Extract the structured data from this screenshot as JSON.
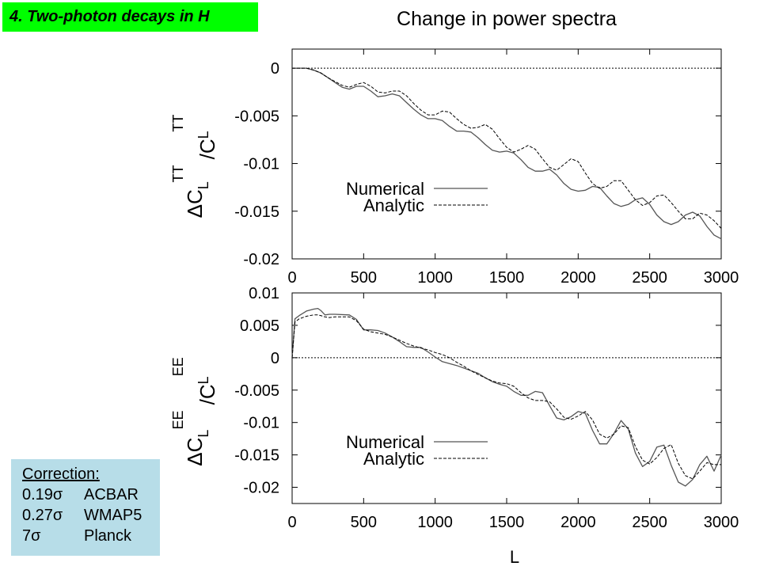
{
  "header": {
    "title": "4. Two-photon decays in H"
  },
  "figure_title": "Change in power spectra",
  "shared_xlabel": "L",
  "correction": {
    "heading": "Correction:",
    "rows": [
      {
        "factor": "0.19",
        "experiment": "ACBAR"
      },
      {
        "factor": "0.27",
        "experiment": "WMAP5"
      },
      {
        "factor": "7",
        "experiment": "Planck"
      }
    ],
    "symbol": "σ"
  },
  "colors": {
    "title_bg": "#00ff00",
    "correction_bg": "#b7dde8",
    "line": "#000000",
    "numerical_line": "#555555"
  },
  "chart_data": [
    {
      "type": "line",
      "title": "",
      "xlabel": "",
      "ylabel": "ΔC_L^TT / C_L^TT",
      "xlim": [
        0,
        3000
      ],
      "ylim": [
        -0.02,
        0.002
      ],
      "xticks": [
        "0",
        "500",
        "1000",
        "1500",
        "2000",
        "2500",
        "3000"
      ],
      "yticks": [
        "0",
        "-0.005",
        "-0.01",
        "-0.015",
        "-0.02"
      ],
      "ytick_values": [
        0,
        -0.005,
        -0.01,
        -0.015,
        -0.02
      ],
      "grid": false,
      "legend_placement": "center-right",
      "zero_line": true,
      "series": [
        {
          "name": "Numerical",
          "style": "solid",
          "x": [
            0,
            100,
            150,
            200,
            250,
            300,
            350,
            400,
            450,
            500,
            550,
            600,
            650,
            700,
            750,
            800,
            850,
            900,
            950,
            1000,
            1050,
            1100,
            1150,
            1200,
            1250,
            1300,
            1350,
            1400,
            1450,
            1500,
            1550,
            1600,
            1650,
            1700,
            1750,
            1800,
            1850,
            1900,
            1950,
            2000,
            2050,
            2100,
            2150,
            2200,
            2250,
            2300,
            2350,
            2400,
            2450,
            2500,
            2550,
            2600,
            2650,
            2700,
            2750,
            2800,
            2850,
            2900,
            2950,
            3000
          ],
          "y": [
            0,
            0,
            -0.0002,
            -0.0005,
            -0.001,
            -0.0015,
            -0.002,
            -0.0022,
            -0.0019,
            -0.0019,
            -0.0024,
            -0.003,
            -0.0029,
            -0.0027,
            -0.0029,
            -0.0036,
            -0.0043,
            -0.0049,
            -0.0053,
            -0.0053,
            -0.0055,
            -0.0061,
            -0.0066,
            -0.0066,
            -0.0067,
            -0.0073,
            -0.008,
            -0.0086,
            -0.0088,
            -0.0087,
            -0.0089,
            -0.0096,
            -0.0104,
            -0.0108,
            -0.0108,
            -0.0106,
            -0.0112,
            -0.0121,
            -0.0127,
            -0.0129,
            -0.0128,
            -0.0124,
            -0.0125,
            -0.0134,
            -0.0142,
            -0.0145,
            -0.0143,
            -0.0138,
            -0.0136,
            -0.0143,
            -0.0154,
            -0.0161,
            -0.0164,
            -0.0161,
            -0.0154,
            -0.0151,
            -0.0155,
            -0.0166,
            -0.0175,
            -0.0179
          ]
        },
        {
          "name": "Analytic",
          "style": "dashed",
          "x": [
            0,
            100,
            150,
            200,
            250,
            300,
            350,
            400,
            450,
            500,
            550,
            600,
            650,
            700,
            750,
            800,
            850,
            900,
            950,
            1000,
            1050,
            1100,
            1150,
            1200,
            1250,
            1300,
            1350,
            1400,
            1450,
            1500,
            1550,
            1600,
            1650,
            1700,
            1750,
            1800,
            1850,
            1900,
            1950,
            2000,
            2050,
            2100,
            2150,
            2200,
            2250,
            2300,
            2350,
            2400,
            2450,
            2500,
            2550,
            2600,
            2650,
            2700,
            2750,
            2800,
            2850,
            2900,
            2950,
            3000
          ],
          "y": [
            0,
            0,
            -0.0002,
            -0.0005,
            -0.001,
            -0.0014,
            -0.0018,
            -0.002,
            -0.0017,
            -0.0015,
            -0.0019,
            -0.0025,
            -0.0026,
            -0.0024,
            -0.0024,
            -0.0029,
            -0.0037,
            -0.0044,
            -0.0049,
            -0.0049,
            -0.0045,
            -0.0046,
            -0.0053,
            -0.0059,
            -0.0063,
            -0.0062,
            -0.0059,
            -0.0064,
            -0.0074,
            -0.0083,
            -0.0088,
            -0.0085,
            -0.0081,
            -0.0085,
            -0.0095,
            -0.0104,
            -0.0107,
            -0.0101,
            -0.0095,
            -0.0098,
            -0.011,
            -0.0121,
            -0.0126,
            -0.0124,
            -0.0118,
            -0.0118,
            -0.0128,
            -0.0138,
            -0.0144,
            -0.0141,
            -0.0134,
            -0.0133,
            -0.0141,
            -0.015,
            -0.0158,
            -0.0158,
            -0.0152,
            -0.0154,
            -0.016,
            -0.0168
          ]
        }
      ]
    },
    {
      "type": "line",
      "title": "",
      "xlabel": "",
      "ylabel": "ΔC_L^EE / C_L^EE",
      "xlim": [
        0,
        3000
      ],
      "ylim": [
        -0.0225,
        0.01
      ],
      "xticks": [
        "0",
        "500",
        "1000",
        "1500",
        "2000",
        "2500",
        "3000"
      ],
      "yticks": [
        "0.01",
        "0.005",
        "0",
        "-0.005",
        "-0.01",
        "-0.015",
        "-0.02"
      ],
      "ytick_values": [
        0.01,
        0.005,
        0,
        -0.005,
        -0.01,
        -0.015,
        -0.02
      ],
      "grid": false,
      "legend_placement": "bottom-center",
      "zero_line": true,
      "series": [
        {
          "name": "Numerical",
          "style": "solid",
          "x": [
            0,
            20,
            50,
            100,
            150,
            180,
            200,
            230,
            260,
            300,
            400,
            450,
            500,
            550,
            600,
            650,
            700,
            750,
            800,
            850,
            900,
            950,
            1000,
            1050,
            1100,
            1150,
            1200,
            1250,
            1300,
            1350,
            1400,
            1450,
            1500,
            1550,
            1600,
            1650,
            1700,
            1750,
            1800,
            1850,
            1900,
            1950,
            2000,
            2050,
            2100,
            2150,
            2200,
            2250,
            2300,
            2350,
            2400,
            2450,
            2500,
            2550,
            2600,
            2650,
            2700,
            2750,
            2800,
            2850,
            2900,
            2950,
            3000
          ],
          "y": [
            0,
            0.006,
            0.0065,
            0.0072,
            0.0075,
            0.0076,
            0.0073,
            0.0066,
            0.0067,
            0.0067,
            0.0066,
            0.0059,
            0.0043,
            0.0043,
            0.0042,
            0.0038,
            0.0032,
            0.0025,
            0.0017,
            0.0016,
            0.0016,
            0.0009,
            0.0001,
            -0.0006,
            -0.0009,
            -0.0012,
            -0.0016,
            -0.002,
            -0.0024,
            -0.0031,
            -0.0037,
            -0.0041,
            -0.0044,
            -0.0052,
            -0.0058,
            -0.0058,
            -0.0052,
            -0.0054,
            -0.0074,
            -0.0093,
            -0.0096,
            -0.0091,
            -0.0083,
            -0.0086,
            -0.0112,
            -0.0133,
            -0.0133,
            -0.0117,
            -0.0097,
            -0.011,
            -0.0147,
            -0.0168,
            -0.016,
            -0.0138,
            -0.0135,
            -0.0166,
            -0.0192,
            -0.0198,
            -0.0188,
            -0.0165,
            -0.0152,
            -0.0175,
            -0.015
          ]
        },
        {
          "name": "Analytic",
          "style": "dashed",
          "x": [
            0,
            20,
            50,
            100,
            150,
            180,
            200,
            230,
            260,
            300,
            400,
            450,
            500,
            550,
            600,
            650,
            700,
            750,
            800,
            850,
            900,
            950,
            1000,
            1050,
            1100,
            1150,
            1200,
            1250,
            1300,
            1350,
            1400,
            1450,
            1500,
            1550,
            1600,
            1650,
            1700,
            1750,
            1800,
            1850,
            1900,
            1950,
            2000,
            2050,
            2100,
            2150,
            2200,
            2250,
            2300,
            2350,
            2400,
            2450,
            2500,
            2550,
            2600,
            2650,
            2700,
            2750,
            2800,
            2850,
            2900,
            2950,
            3000
          ],
          "y": [
            0,
            0.0055,
            0.006,
            0.0064,
            0.0066,
            0.0066,
            0.0065,
            0.0063,
            0.0062,
            0.0063,
            0.0063,
            0.0057,
            0.0044,
            0.004,
            0.0038,
            0.0036,
            0.0032,
            0.0027,
            0.0022,
            0.0018,
            0.0015,
            0.0012,
            0.0008,
            0.0005,
            0.0,
            -0.0007,
            -0.0013,
            -0.002,
            -0.0026,
            -0.0031,
            -0.0036,
            -0.0039,
            -0.004,
            -0.0044,
            -0.0054,
            -0.0062,
            -0.0066,
            -0.0066,
            -0.0068,
            -0.0079,
            -0.0092,
            -0.0095,
            -0.009,
            -0.0083,
            -0.0096,
            -0.0118,
            -0.0124,
            -0.0118,
            -0.0105,
            -0.0108,
            -0.0137,
            -0.0158,
            -0.0164,
            -0.0154,
            -0.014,
            -0.0134,
            -0.0163,
            -0.0182,
            -0.0187,
            -0.0175,
            -0.0162,
            -0.0165,
            -0.0165
          ]
        }
      ]
    }
  ]
}
